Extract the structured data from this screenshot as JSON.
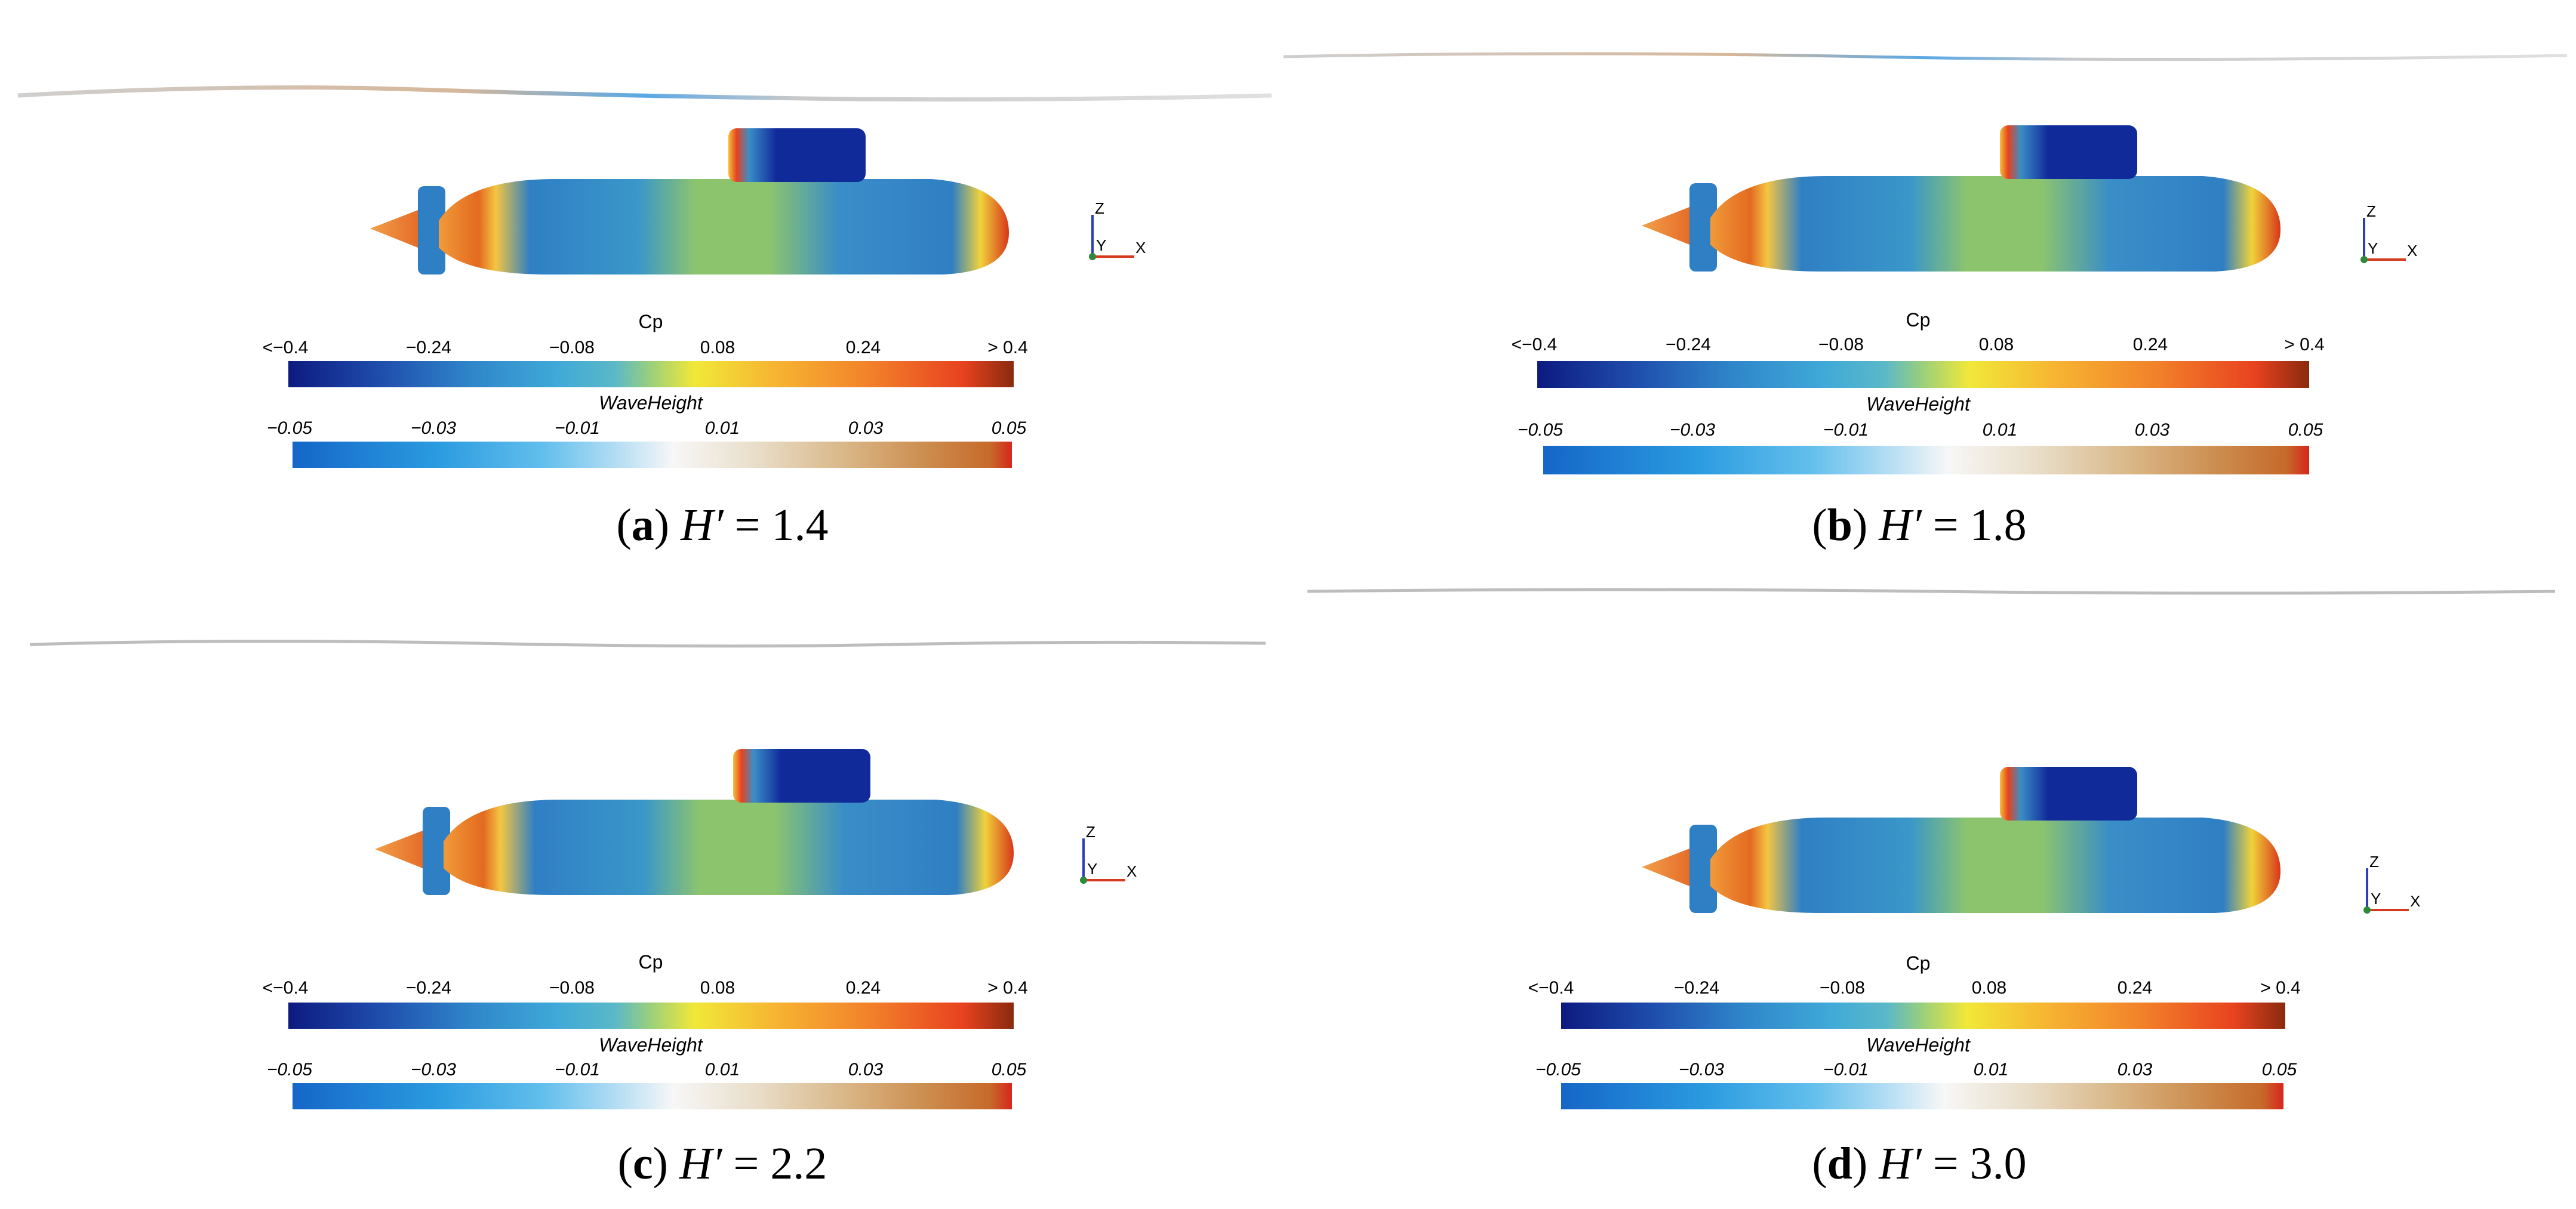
{
  "panels": [
    {
      "letter": "a",
      "param": "H′",
      "equals": "= 1.4"
    },
    {
      "letter": "b",
      "param": "H′",
      "equals": "= 1.8"
    },
    {
      "letter": "c",
      "param": "H′",
      "equals": "= 2.2"
    },
    {
      "letter": "d",
      "param": "H′",
      "equals": "= 3.0"
    }
  ],
  "cp_legend": {
    "title": "Cp",
    "ticks": [
      "<−0.4",
      "−0.24",
      "−0.08",
      "0.08",
      "0.24",
      "> 0.4"
    ]
  },
  "wave_legend": {
    "title": "WaveHeight",
    "ticks": [
      "−0.05",
      "−0.03",
      "−0.01",
      "0.01",
      "0.03",
      "0.05"
    ]
  },
  "axis_labels": {
    "z": "Z",
    "y": "Y",
    "x": "X"
  },
  "colors": {
    "cp_scale": [
      "#0d1a80",
      "#1f4fae",
      "#2f85c9",
      "#3fa9d8",
      "#5ab8c8",
      "#9bd07a",
      "#f1e838",
      "#f6b532",
      "#f2822a",
      "#e8421f",
      "#8a2a0e"
    ],
    "wave_scale": [
      "#1566c8",
      "#2a9be0",
      "#63bfec",
      "#b3ddf4",
      "#f7f7f7",
      "#e8dcc6",
      "#d9b686",
      "#cc8d4f",
      "#c66a2a",
      "#d7261c"
    ],
    "hull_body": "#2f7fc4",
    "hull_green": "#8cc46e",
    "nose_red": "#e84a1f",
    "sail": "#102a9a"
  }
}
